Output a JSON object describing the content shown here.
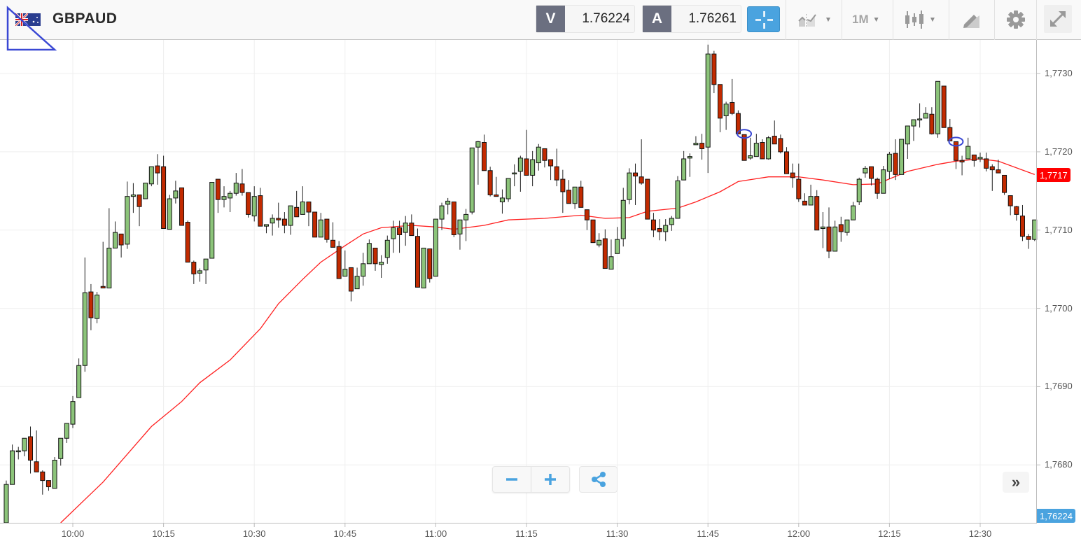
{
  "header": {
    "symbol": "GBPAUD",
    "bid_label": "V",
    "bid_value": "1.76224",
    "ask_label": "A",
    "ask_value": "1.76261",
    "timeframe": "1M",
    "icons": [
      "flag-gb-au-icon",
      "crosshair-icon",
      "chart-type-icon",
      "candlestick-icon",
      "drawing-tools-icon",
      "gear-icon",
      "fullscreen-icon"
    ]
  },
  "colors": {
    "up": "#8cc47a",
    "down": "#c22a00",
    "ma": "#ff2020",
    "accent": "#4aa3df",
    "last_price_tag": "#ff0000",
    "bid_tag": "#4aa3df"
  },
  "controls": {
    "zoom_out": "−",
    "zoom_in": "+",
    "scroll_end": "»"
  },
  "chart_data": {
    "type": "candlestick",
    "title": "GBPAUD",
    "start_time": "09:49",
    "interval_minutes": 1,
    "ylim": [
      1.76726,
      1.77343
    ],
    "grid": true,
    "y_ticks": [
      "1,7730",
      "1,7720",
      "1,7710",
      "1,7700",
      "1,7690",
      "1,7680"
    ],
    "y_tick_values": [
      1.773,
      1.772,
      1.771,
      1.77,
      1.769,
      1.768
    ],
    "x_ticks": [
      "10:00",
      "10:15",
      "10:30",
      "10:45",
      "11:00",
      "11:15",
      "11:30",
      "11:45",
      "12:00",
      "12:15",
      "12:30"
    ],
    "last_price_tag": {
      "label": "1,7717",
      "value": 1.7717
    },
    "bid_tag": {
      "label": "1,76224"
    },
    "ohlc": [
      [
        1.76726,
        1.7678,
        1.76726,
        1.76775
      ],
      [
        1.76775,
        1.76826,
        1.76775,
        1.76818
      ],
      [
        1.76818,
        1.76823,
        1.76807,
        1.76818
      ],
      [
        1.76818,
        1.76834,
        1.76811,
        1.76834
      ],
      [
        1.76836,
        1.76849,
        1.76789,
        1.76806
      ],
      [
        1.76804,
        1.76844,
        1.76791,
        1.76791
      ],
      [
        1.76791,
        1.76793,
        1.76762,
        1.7678
      ],
      [
        1.7678,
        1.7678,
        1.76767,
        1.76772
      ],
      [
        1.7677,
        1.7681,
        1.7677,
        1.76806
      ],
      [
        1.76808,
        1.76834,
        1.76799,
        1.76834
      ],
      [
        1.76834,
        1.76853,
        1.76828,
        1.76853
      ],
      [
        1.76852,
        1.76888,
        1.76847,
        1.76881
      ],
      [
        1.76886,
        1.76936,
        1.76886,
        1.76927
      ],
      [
        1.76927,
        1.77065,
        1.76919,
        1.7702
      ],
      [
        1.77021,
        1.77031,
        1.76972,
        1.76988
      ],
      [
        1.76987,
        1.77021,
        1.76981,
        1.77017
      ],
      [
        1.77028,
        1.77085,
        1.77026,
        1.77026
      ],
      [
        1.77026,
        1.77128,
        1.77026,
        1.77077
      ],
      [
        1.77077,
        1.77111,
        1.77077,
        1.77097
      ],
      [
        1.77095,
        1.77095,
        1.77065,
        1.77081
      ],
      [
        1.77082,
        1.77162,
        1.77076,
        1.77143
      ],
      [
        1.77143,
        1.7716,
        1.77122,
        1.77145
      ],
      [
        1.77145,
        1.77145,
        1.77105,
        1.7713
      ],
      [
        1.7714,
        1.7716,
        1.7714,
        1.7716
      ],
      [
        1.77159,
        1.77181,
        1.77156,
        1.77181
      ],
      [
        1.77182,
        1.77197,
        1.77158,
        1.77173
      ],
      [
        1.77181,
        1.77195,
        1.77102,
        1.77102
      ],
      [
        1.77101,
        1.77145,
        1.77101,
        1.7714
      ],
      [
        1.77141,
        1.77163,
        1.77134,
        1.7715
      ],
      [
        1.77154,
        1.77154,
        1.77106,
        1.77106
      ],
      [
        1.7711,
        1.77112,
        1.77059,
        1.77059
      ],
      [
        1.77059,
        1.77061,
        1.77031,
        1.77044
      ],
      [
        1.77045,
        1.77051,
        1.77034,
        1.77048
      ],
      [
        1.77049,
        1.77063,
        1.77031,
        1.77063
      ],
      [
        1.77064,
        1.77161,
        1.77064,
        1.77161
      ],
      [
        1.77165,
        1.77165,
        1.77122,
        1.77139
      ],
      [
        1.77139,
        1.77156,
        1.77129,
        1.77143
      ],
      [
        1.77141,
        1.7715,
        1.77123,
        1.77147
      ],
      [
        1.77147,
        1.77173,
        1.77144,
        1.7716
      ],
      [
        1.77159,
        1.77178,
        1.77144,
        1.77148
      ],
      [
        1.77148,
        1.77148,
        1.77116,
        1.7712
      ],
      [
        1.77118,
        1.77156,
        1.77111,
        1.77143
      ],
      [
        1.77144,
        1.77154,
        1.77105,
        1.77105
      ],
      [
        1.77105,
        1.77107,
        1.77096,
        1.77107
      ],
      [
        1.77109,
        1.7712,
        1.77093,
        1.77115
      ],
      [
        1.77115,
        1.77135,
        1.77103,
        1.77113
      ],
      [
        1.77114,
        1.77123,
        1.77096,
        1.77106
      ],
      [
        1.77106,
        1.77131,
        1.77094,
        1.77131
      ],
      [
        1.77129,
        1.7715,
        1.77117,
        1.77117
      ],
      [
        1.7712,
        1.77156,
        1.7712,
        1.77136
      ],
      [
        1.77136,
        1.77136,
        1.77105,
        1.77123
      ],
      [
        1.77123,
        1.77123,
        1.77091,
        1.77091
      ],
      [
        1.77091,
        1.77122,
        1.77091,
        1.77113
      ],
      [
        1.77114,
        1.77114,
        1.77084,
        1.77088
      ],
      [
        1.77087,
        1.7711,
        1.77078,
        1.77078
      ],
      [
        1.77079,
        1.77086,
        1.77038,
        1.77038
      ],
      [
        1.77041,
        1.77074,
        1.77041,
        1.7705
      ],
      [
        1.77052,
        1.77052,
        1.77009,
        1.77022
      ],
      [
        1.77025,
        1.77052,
        1.77025,
        1.77041
      ],
      [
        1.77041,
        1.77071,
        1.77029,
        1.77057
      ],
      [
        1.77057,
        1.77088,
        1.77057,
        1.77083
      ],
      [
        1.77077,
        1.77077,
        1.77048,
        1.77057
      ],
      [
        1.77056,
        1.77068,
        1.77039,
        1.77059
      ],
      [
        1.77065,
        1.77093,
        1.77057,
        1.77087
      ],
      [
        1.77089,
        1.77112,
        1.77071,
        1.77103
      ],
      [
        1.77103,
        1.77112,
        1.77071,
        1.77094
      ],
      [
        1.77097,
        1.77118,
        1.7708,
        1.77109
      ],
      [
        1.77109,
        1.7712,
        1.77093,
        1.77093
      ],
      [
        1.77092,
        1.77102,
        1.77027,
        1.77027
      ],
      [
        1.77026,
        1.77077,
        1.77026,
        1.77077
      ],
      [
        1.77076,
        1.77076,
        1.77033,
        1.77038
      ],
      [
        1.77041,
        1.77114,
        1.77041,
        1.77114
      ],
      [
        1.77114,
        1.77135,
        1.771,
        1.77131
      ],
      [
        1.77133,
        1.77141,
        1.7712,
        1.77137
      ],
      [
        1.77136,
        1.77136,
        1.77091,
        1.77094
      ],
      [
        1.77095,
        1.77113,
        1.77075,
        1.77113
      ],
      [
        1.77113,
        1.77127,
        1.77086,
        1.7712
      ],
      [
        1.77123,
        1.77205,
        1.7712,
        1.77205
      ],
      [
        1.77206,
        1.77214,
        1.77158,
        1.77213
      ],
      [
        1.77212,
        1.77222,
        1.77176,
        1.77176
      ],
      [
        1.77176,
        1.77181,
        1.77143,
        1.77145
      ],
      [
        1.77145,
        1.77168,
        1.77143,
        1.77143
      ],
      [
        1.77136,
        1.77152,
        1.77121,
        1.77141
      ],
      [
        1.7714,
        1.77166,
        1.77136,
        1.77166
      ],
      [
        1.77173,
        1.77184,
        1.77156,
        1.77173
      ],
      [
        1.77175,
        1.77195,
        1.77149,
        1.77192
      ],
      [
        1.77191,
        1.77228,
        1.7717,
        1.7717
      ],
      [
        1.7717,
        1.77201,
        1.77156,
        1.7719
      ],
      [
        1.77186,
        1.7721,
        1.77176,
        1.77206
      ],
      [
        1.77204,
        1.77204,
        1.7718,
        1.77189
      ],
      [
        1.7719,
        1.7719,
        1.77164,
        1.77182
      ],
      [
        1.77181,
        1.77204,
        1.77156,
        1.77164
      ],
      [
        1.77165,
        1.77177,
        1.77122,
        1.77149
      ],
      [
        1.77151,
        1.77164,
        1.77134,
        1.77134
      ],
      [
        1.77134,
        1.77155,
        1.77127,
        1.77155
      ],
      [
        1.77155,
        1.77163,
        1.77129,
        1.77129
      ],
      [
        1.77126,
        1.77126,
        1.771,
        1.77113
      ],
      [
        1.77113,
        1.77113,
        1.77084,
        1.77084
      ],
      [
        1.77081,
        1.77096,
        1.77078,
        1.77087
      ],
      [
        1.77089,
        1.77101,
        1.77051,
        1.77051
      ],
      [
        1.7705,
        1.77088,
        1.7705,
        1.77066
      ],
      [
        1.7707,
        1.77104,
        1.7707,
        1.77088
      ],
      [
        1.77089,
        1.77154,
        1.77079,
        1.77138
      ],
      [
        1.77139,
        1.77179,
        1.77133,
        1.77173
      ],
      [
        1.77173,
        1.77185,
        1.77132,
        1.77169
      ],
      [
        1.77168,
        1.77216,
        1.77158,
        1.7716
      ],
      [
        1.77165,
        1.77165,
        1.77114,
        1.77114
      ],
      [
        1.77113,
        1.77122,
        1.77091,
        1.771
      ],
      [
        1.77102,
        1.77114,
        1.77087,
        1.77098
      ],
      [
        1.77098,
        1.77114,
        1.77086,
        1.77106
      ],
      [
        1.77107,
        1.77118,
        1.77099,
        1.77115
      ],
      [
        1.77115,
        1.77169,
        1.77115,
        1.77163
      ],
      [
        1.77164,
        1.77201,
        1.77164,
        1.77191
      ],
      [
        1.77192,
        1.77198,
        1.77168,
        1.77194
      ],
      [
        1.77209,
        1.7722,
        1.77209,
        1.77211
      ],
      [
        1.77211,
        1.77223,
        1.7719,
        1.77204
      ],
      [
        1.77206,
        1.77337,
        1.77173,
        1.77325
      ],
      [
        1.77325,
        1.77329,
        1.77275,
        1.77286
      ],
      [
        1.77286,
        1.77286,
        1.77225,
        1.77243
      ],
      [
        1.77246,
        1.77264,
        1.77228,
        1.77261
      ],
      [
        1.77263,
        1.77293,
        1.77247,
        1.77249
      ],
      [
        1.77249,
        1.77253,
        1.77223,
        1.77223
      ],
      [
        1.77222,
        1.77222,
        1.77189,
        1.77189
      ],
      [
        1.77192,
        1.77218,
        1.7719,
        1.77195
      ],
      [
        1.77194,
        1.77223,
        1.77194,
        1.77211
      ],
      [
        1.77212,
        1.77216,
        1.77191,
        1.77191
      ],
      [
        1.77191,
        1.7722,
        1.7719,
        1.77218
      ],
      [
        1.7722,
        1.7724,
        1.7721,
        1.7721
      ],
      [
        1.77217,
        1.77222,
        1.77198,
        1.772
      ],
      [
        1.772,
        1.77206,
        1.77172,
        1.77172
      ],
      [
        1.77173,
        1.77185,
        1.77154,
        1.77167
      ],
      [
        1.77165,
        1.77185,
        1.77136,
        1.7714
      ],
      [
        1.77137,
        1.77147,
        1.77132,
        1.77132
      ],
      [
        1.77132,
        1.77158,
        1.77132,
        1.77143
      ],
      [
        1.77143,
        1.77151,
        1.771,
        1.771
      ],
      [
        1.77102,
        1.77123,
        1.77077,
        1.77104
      ],
      [
        1.77104,
        1.77129,
        1.77064,
        1.77073
      ],
      [
        1.77073,
        1.77112,
        1.77073,
        1.77104
      ],
      [
        1.77107,
        1.77117,
        1.77085,
        1.77098
      ],
      [
        1.77097,
        1.77113,
        1.77093,
        1.77113
      ],
      [
        1.77113,
        1.77136,
        1.77113,
        1.77131
      ],
      [
        1.77136,
        1.77167,
        1.77132,
        1.77165
      ],
      [
        1.77173,
        1.77182,
        1.77167,
        1.77179
      ],
      [
        1.77181,
        1.77181,
        1.77157,
        1.77166
      ],
      [
        1.77165,
        1.77167,
        1.7714,
        1.77147
      ],
      [
        1.77147,
        1.77182,
        1.77147,
        1.77177
      ],
      [
        1.77175,
        1.772,
        1.77165,
        1.77197
      ],
      [
        1.77198,
        1.77216,
        1.77164,
        1.77171
      ],
      [
        1.77171,
        1.77216,
        1.77171,
        1.77216
      ],
      [
        1.7721,
        1.77233,
        1.77191,
        1.77233
      ],
      [
        1.77233,
        1.77241,
        1.77214,
        1.77241
      ],
      [
        1.77242,
        1.77262,
        1.77231,
        1.77242
      ],
      [
        1.77243,
        1.77257,
        1.77243,
        1.77249
      ],
      [
        1.77248,
        1.77257,
        1.77222,
        1.77223
      ],
      [
        1.77223,
        1.7729,
        1.77218,
        1.7729
      ],
      [
        1.77284,
        1.77284,
        1.77231,
        1.77231
      ],
      [
        1.77231,
        1.77242,
        1.77214,
        1.77214
      ],
      [
        1.77213,
        1.77213,
        1.77178,
        1.77189
      ],
      [
        1.77189,
        1.77195,
        1.7717,
        1.77187
      ],
      [
        1.77191,
        1.77218,
        1.77191,
        1.77207
      ],
      [
        1.77196,
        1.77196,
        1.77181,
        1.77189
      ],
      [
        1.77191,
        1.77199,
        1.77187,
        1.77193
      ],
      [
        1.77191,
        1.77199,
        1.77175,
        1.77179
      ],
      [
        1.77181,
        1.77184,
        1.7715,
        1.77177
      ],
      [
        1.77177,
        1.7719,
        1.77173,
        1.77173
      ],
      [
        1.7717,
        1.7717,
        1.77145,
        1.77148
      ],
      [
        1.77144,
        1.77144,
        1.77119,
        1.77131
      ],
      [
        1.7713,
        1.77131,
        1.77112,
        1.7712
      ],
      [
        1.77118,
        1.77132,
        1.77086,
        1.77092
      ],
      [
        1.77092,
        1.77095,
        1.77076,
        1.77088
      ],
      [
        1.77088,
        1.77113,
        1.77086,
        1.77113
      ]
    ],
    "moving_average": [
      [
        "09:58",
        1.76726
      ],
      [
        "10:05",
        1.76778
      ],
      [
        "10:13",
        1.76849
      ],
      [
        "10:18",
        1.76881
      ],
      [
        "10:21",
        1.76905
      ],
      [
        "10:26",
        1.76934
      ],
      [
        "10:31",
        1.76974
      ],
      [
        "10:34",
        1.77006
      ],
      [
        "10:38",
        1.77037
      ],
      [
        "10:41",
        1.77059
      ],
      [
        "10:45",
        1.7708
      ],
      [
        "10:48",
        1.77095
      ],
      [
        "10:51",
        1.77103
      ],
      [
        "10:56",
        1.77106
      ],
      [
        "11:00",
        1.77104
      ],
      [
        "11:03",
        1.77101
      ],
      [
        "11:08",
        1.77106
      ],
      [
        "11:12",
        1.77113
      ],
      [
        "11:18",
        1.77115
      ],
      [
        "11:24",
        1.77119
      ],
      [
        "11:28",
        1.77115
      ],
      [
        "11:32",
        1.77116
      ],
      [
        "11:35",
        1.77124
      ],
      [
        "11:40",
        1.77128
      ],
      [
        "11:43",
        1.77136
      ],
      [
        "11:47",
        1.77149
      ],
      [
        "11:50",
        1.77162
      ],
      [
        "11:55",
        1.77168
      ],
      [
        "12:00",
        1.77168
      ],
      [
        "12:04",
        1.77164
      ],
      [
        "12:09",
        1.77158
      ],
      [
        "12:13",
        1.77159
      ],
      [
        "12:18",
        1.77175
      ],
      [
        "12:23",
        1.77184
      ],
      [
        "12:26",
        1.77188
      ],
      [
        "12:30",
        1.77191
      ],
      [
        "12:33",
        1.77188
      ],
      [
        "12:39",
        1.77171
      ]
    ],
    "markers": [
      {
        "time": "11:51",
        "price": 1.77223
      },
      {
        "time": "12:26",
        "price": 1.77213
      }
    ]
  }
}
